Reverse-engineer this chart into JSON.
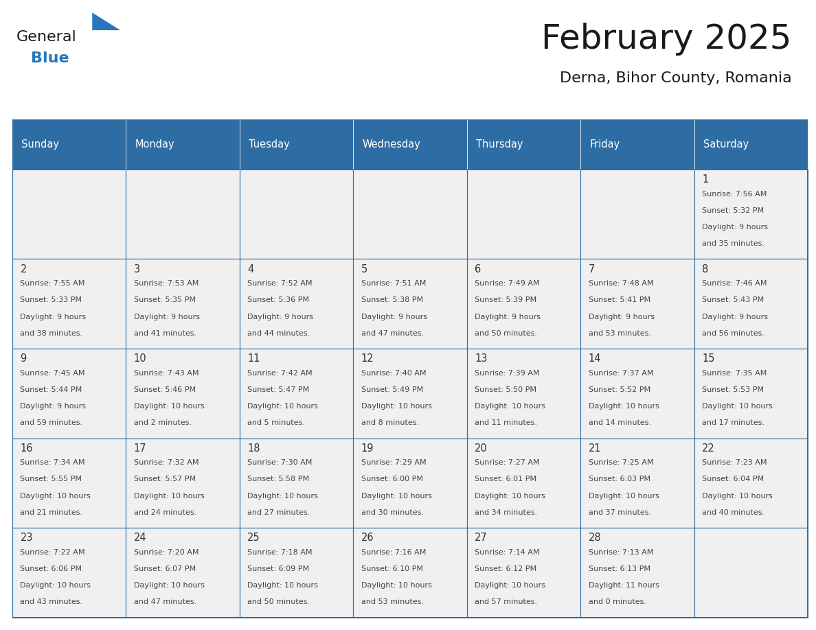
{
  "title": "February 2025",
  "subtitle": "Derna, Bihor County, Romania",
  "header_color": "#2E6DA4",
  "header_text_color": "#FFFFFF",
  "cell_bg_color": "#F0F0F0",
  "border_color": "#2E6DA4",
  "text_color": "#444444",
  "days_of_week": [
    "Sunday",
    "Monday",
    "Tuesday",
    "Wednesday",
    "Thursday",
    "Friday",
    "Saturday"
  ],
  "calendar_data": [
    [
      null,
      null,
      null,
      null,
      null,
      null,
      {
        "day": 1,
        "sunrise": "7:56 AM",
        "sunset": "5:32 PM",
        "daylight_line1": "Daylight: 9 hours",
        "daylight_line2": "and 35 minutes."
      }
    ],
    [
      {
        "day": 2,
        "sunrise": "7:55 AM",
        "sunset": "5:33 PM",
        "daylight_line1": "Daylight: 9 hours",
        "daylight_line2": "and 38 minutes."
      },
      {
        "day": 3,
        "sunrise": "7:53 AM",
        "sunset": "5:35 PM",
        "daylight_line1": "Daylight: 9 hours",
        "daylight_line2": "and 41 minutes."
      },
      {
        "day": 4,
        "sunrise": "7:52 AM",
        "sunset": "5:36 PM",
        "daylight_line1": "Daylight: 9 hours",
        "daylight_line2": "and 44 minutes."
      },
      {
        "day": 5,
        "sunrise": "7:51 AM",
        "sunset": "5:38 PM",
        "daylight_line1": "Daylight: 9 hours",
        "daylight_line2": "and 47 minutes."
      },
      {
        "day": 6,
        "sunrise": "7:49 AM",
        "sunset": "5:39 PM",
        "daylight_line1": "Daylight: 9 hours",
        "daylight_line2": "and 50 minutes."
      },
      {
        "day": 7,
        "sunrise": "7:48 AM",
        "sunset": "5:41 PM",
        "daylight_line1": "Daylight: 9 hours",
        "daylight_line2": "and 53 minutes."
      },
      {
        "day": 8,
        "sunrise": "7:46 AM",
        "sunset": "5:43 PM",
        "daylight_line1": "Daylight: 9 hours",
        "daylight_line2": "and 56 minutes."
      }
    ],
    [
      {
        "day": 9,
        "sunrise": "7:45 AM",
        "sunset": "5:44 PM",
        "daylight_line1": "Daylight: 9 hours",
        "daylight_line2": "and 59 minutes."
      },
      {
        "day": 10,
        "sunrise": "7:43 AM",
        "sunset": "5:46 PM",
        "daylight_line1": "Daylight: 10 hours",
        "daylight_line2": "and 2 minutes."
      },
      {
        "day": 11,
        "sunrise": "7:42 AM",
        "sunset": "5:47 PM",
        "daylight_line1": "Daylight: 10 hours",
        "daylight_line2": "and 5 minutes."
      },
      {
        "day": 12,
        "sunrise": "7:40 AM",
        "sunset": "5:49 PM",
        "daylight_line1": "Daylight: 10 hours",
        "daylight_line2": "and 8 minutes."
      },
      {
        "day": 13,
        "sunrise": "7:39 AM",
        "sunset": "5:50 PM",
        "daylight_line1": "Daylight: 10 hours",
        "daylight_line2": "and 11 minutes."
      },
      {
        "day": 14,
        "sunrise": "7:37 AM",
        "sunset": "5:52 PM",
        "daylight_line1": "Daylight: 10 hours",
        "daylight_line2": "and 14 minutes."
      },
      {
        "day": 15,
        "sunrise": "7:35 AM",
        "sunset": "5:53 PM",
        "daylight_line1": "Daylight: 10 hours",
        "daylight_line2": "and 17 minutes."
      }
    ],
    [
      {
        "day": 16,
        "sunrise": "7:34 AM",
        "sunset": "5:55 PM",
        "daylight_line1": "Daylight: 10 hours",
        "daylight_line2": "and 21 minutes."
      },
      {
        "day": 17,
        "sunrise": "7:32 AM",
        "sunset": "5:57 PM",
        "daylight_line1": "Daylight: 10 hours",
        "daylight_line2": "and 24 minutes."
      },
      {
        "day": 18,
        "sunrise": "7:30 AM",
        "sunset": "5:58 PM",
        "daylight_line1": "Daylight: 10 hours",
        "daylight_line2": "and 27 minutes."
      },
      {
        "day": 19,
        "sunrise": "7:29 AM",
        "sunset": "6:00 PM",
        "daylight_line1": "Daylight: 10 hours",
        "daylight_line2": "and 30 minutes."
      },
      {
        "day": 20,
        "sunrise": "7:27 AM",
        "sunset": "6:01 PM",
        "daylight_line1": "Daylight: 10 hours",
        "daylight_line2": "and 34 minutes."
      },
      {
        "day": 21,
        "sunrise": "7:25 AM",
        "sunset": "6:03 PM",
        "daylight_line1": "Daylight: 10 hours",
        "daylight_line2": "and 37 minutes."
      },
      {
        "day": 22,
        "sunrise": "7:23 AM",
        "sunset": "6:04 PM",
        "daylight_line1": "Daylight: 10 hours",
        "daylight_line2": "and 40 minutes."
      }
    ],
    [
      {
        "day": 23,
        "sunrise": "7:22 AM",
        "sunset": "6:06 PM",
        "daylight_line1": "Daylight: 10 hours",
        "daylight_line2": "and 43 minutes."
      },
      {
        "day": 24,
        "sunrise": "7:20 AM",
        "sunset": "6:07 PM",
        "daylight_line1": "Daylight: 10 hours",
        "daylight_line2": "and 47 minutes."
      },
      {
        "day": 25,
        "sunrise": "7:18 AM",
        "sunset": "6:09 PM",
        "daylight_line1": "Daylight: 10 hours",
        "daylight_line2": "and 50 minutes."
      },
      {
        "day": 26,
        "sunrise": "7:16 AM",
        "sunset": "6:10 PM",
        "daylight_line1": "Daylight: 10 hours",
        "daylight_line2": "and 53 minutes."
      },
      {
        "day": 27,
        "sunrise": "7:14 AM",
        "sunset": "6:12 PM",
        "daylight_line1": "Daylight: 10 hours",
        "daylight_line2": "and 57 minutes."
      },
      {
        "day": 28,
        "sunrise": "7:13 AM",
        "sunset": "6:13 PM",
        "daylight_line1": "Daylight: 11 hours",
        "daylight_line2": "and 0 minutes."
      },
      null
    ]
  ],
  "logo_text_general": "General",
  "logo_text_blue": "Blue",
  "logo_color_general": "#1a1a1a",
  "logo_color_blue": "#2776bd"
}
